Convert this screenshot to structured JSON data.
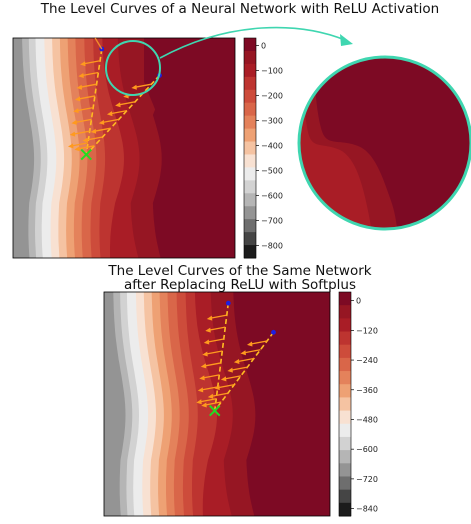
{
  "chart_data": [
    {
      "type": "heatmap",
      "title": "The Level Curves of a Neural Network with ReLU Activation",
      "colorbar": {
        "ticks": [
          0,
          -100,
          -200,
          -300,
          -400,
          -500,
          -600,
          -700,
          -800
        ],
        "range": [
          -850,
          30
        ]
      },
      "zoom_inset": true,
      "start_points": [
        [
          0.4,
          0.95
        ],
        [
          0.66,
          0.83
        ]
      ],
      "end_point": [
        0.33,
        0.47
      ]
    },
    {
      "type": "heatmap",
      "title_lines": [
        "The Level Curves of the Same Network",
        "after Replacing ReLU with Softplus"
      ],
      "colorbar": {
        "ticks": [
          0,
          -120,
          -240,
          -360,
          -480,
          -600,
          -720,
          -840
        ],
        "range": [
          -870,
          35
        ]
      },
      "zoom_inset": false,
      "start_points": [
        [
          0.55,
          0.95
        ],
        [
          0.75,
          0.82
        ]
      ],
      "end_point": [
        0.49,
        0.47
      ]
    }
  ],
  "colors": {
    "contour_levels": [
      "#7d0a24",
      "#961623",
      "#a91d26",
      "#bd3430",
      "#cd4c3b",
      "#d96649",
      "#e4825b",
      "#eea174",
      "#f5c3a2",
      "#f8e1d2",
      "#ececec",
      "#d2d2d2",
      "#b5b5b5",
      "#949494",
      "#6e6e6e",
      "#454545",
      "#1c1c1c"
    ],
    "arrow": "#ff9a1e",
    "path": "#ffbb22",
    "marker_start": "#1f1fe0",
    "marker_end": "#22dd22",
    "inset_ring": "#3fd6b0"
  }
}
